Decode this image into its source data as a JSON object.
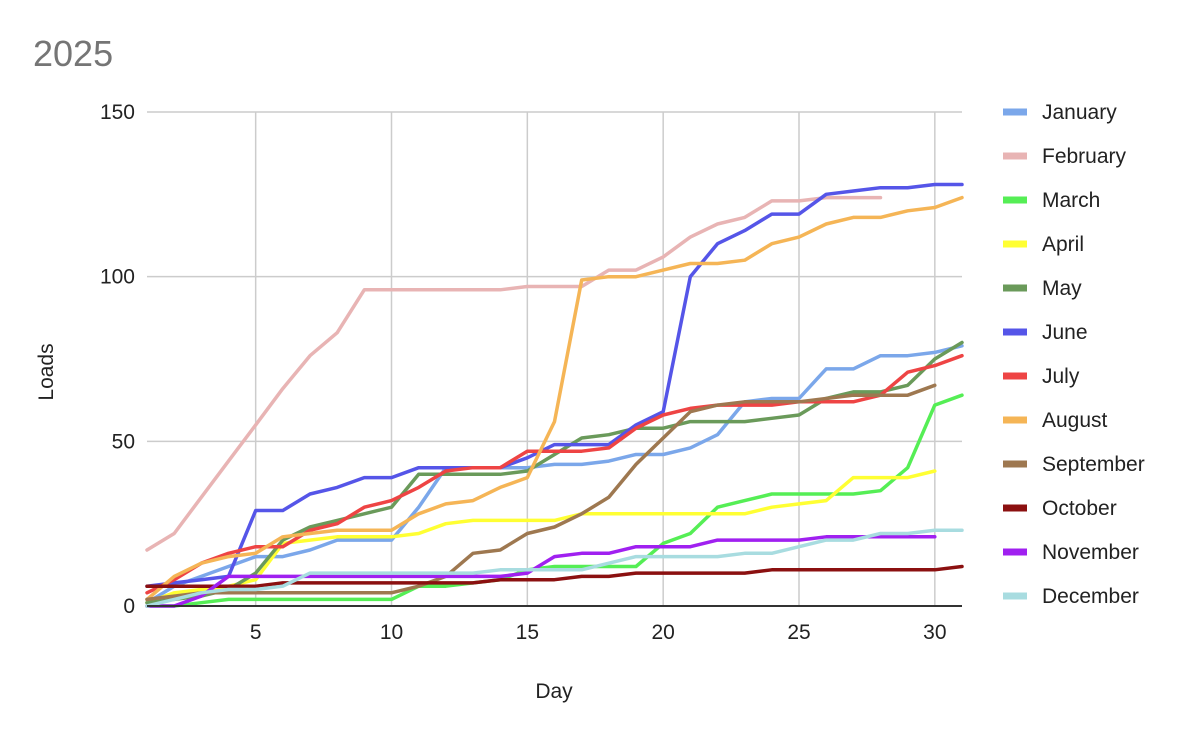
{
  "chart_data": {
    "type": "line",
    "title": "2025",
    "xlabel": "Day",
    "ylabel": "Loads",
    "xlim": [
      1,
      31
    ],
    "ylim": [
      0,
      150
    ],
    "x_ticks": [
      5,
      10,
      15,
      20,
      25,
      30
    ],
    "y_ticks": [
      0,
      50,
      100,
      150
    ],
    "grid": true,
    "legend_position": "right",
    "series": [
      {
        "name": "January",
        "color": "#7ba7ea",
        "x": [
          1,
          2,
          3,
          4,
          5,
          6,
          7,
          8,
          9,
          10,
          11,
          12,
          13,
          14,
          15,
          16,
          17,
          18,
          19,
          20,
          21,
          22,
          23,
          24,
          25,
          26,
          27,
          28,
          29,
          30,
          31
        ],
        "values": [
          1,
          6,
          9,
          12,
          15,
          15,
          17,
          20,
          20,
          20,
          30,
          42,
          42,
          42,
          42,
          43,
          43,
          44,
          46,
          46,
          48,
          52,
          62,
          63,
          63,
          72,
          72,
          76,
          76,
          77,
          79
        ]
      },
      {
        "name": "February",
        "color": "#e8b4b4",
        "x": [
          1,
          2,
          3,
          4,
          5,
          6,
          7,
          8,
          9,
          10,
          11,
          12,
          13,
          14,
          15,
          16,
          17,
          18,
          19,
          20,
          21,
          22,
          23,
          24,
          25,
          26,
          27,
          28
        ],
        "values": [
          17,
          22,
          33,
          44,
          55,
          66,
          76,
          83,
          96,
          96,
          96,
          96,
          96,
          96,
          97,
          97,
          97,
          102,
          102,
          106,
          112,
          116,
          118,
          123,
          123,
          124,
          124,
          124
        ]
      },
      {
        "name": "March",
        "color": "#55ee55",
        "x": [
          1,
          2,
          3,
          4,
          5,
          6,
          7,
          8,
          9,
          10,
          11,
          12,
          13,
          14,
          15,
          16,
          17,
          18,
          19,
          20,
          21,
          22,
          23,
          24,
          25,
          26,
          27,
          28,
          29,
          30,
          31
        ],
        "values": [
          0,
          0,
          1,
          2,
          2,
          2,
          2,
          2,
          2,
          2,
          6,
          6,
          7,
          8,
          11,
          12,
          12,
          12,
          12,
          19,
          22,
          30,
          32,
          34,
          34,
          34,
          34,
          35,
          42,
          61,
          64
        ]
      },
      {
        "name": "April",
        "color": "#ffff33",
        "x": [
          1,
          2,
          3,
          4,
          5,
          6,
          7,
          8,
          9,
          10,
          11,
          12,
          13,
          14,
          15,
          16,
          17,
          18,
          19,
          20,
          21,
          22,
          23,
          24,
          25,
          26,
          27,
          28,
          29,
          30
        ],
        "values": [
          1,
          4,
          5,
          6,
          8,
          19,
          20,
          21,
          21,
          21,
          22,
          25,
          26,
          26,
          26,
          26,
          28,
          28,
          28,
          28,
          28,
          28,
          28,
          30,
          31,
          32,
          39,
          39,
          39,
          41
        ]
      },
      {
        "name": "May",
        "color": "#6a9a5a",
        "x": [
          1,
          2,
          3,
          4,
          5,
          6,
          7,
          8,
          9,
          10,
          11,
          12,
          13,
          14,
          15,
          16,
          17,
          18,
          19,
          20,
          21,
          22,
          23,
          24,
          25,
          26,
          27,
          28,
          29,
          30,
          31
        ],
        "values": [
          1,
          2,
          3,
          5,
          10,
          20,
          24,
          26,
          28,
          30,
          40,
          40,
          40,
          40,
          41,
          46,
          51,
          52,
          54,
          54,
          56,
          56,
          56,
          57,
          58,
          63,
          65,
          65,
          67,
          75,
          80
        ]
      },
      {
        "name": "June",
        "color": "#5555e8",
        "x": [
          1,
          2,
          3,
          4,
          5,
          6,
          7,
          8,
          9,
          10,
          11,
          12,
          13,
          14,
          15,
          16,
          17,
          18,
          19,
          20,
          21,
          22,
          23,
          24,
          25,
          26,
          27,
          28,
          29,
          30,
          31
        ],
        "values": [
          6,
          7,
          8,
          9,
          29,
          29,
          34,
          36,
          39,
          39,
          42,
          42,
          42,
          42,
          45,
          49,
          49,
          49,
          55,
          59,
          100,
          110,
          114,
          119,
          119,
          125,
          126,
          127,
          127,
          128,
          128
        ]
      },
      {
        "name": "July",
        "color": "#ee4444",
        "x": [
          1,
          2,
          3,
          4,
          5,
          6,
          7,
          8,
          9,
          10,
          11,
          12,
          13,
          14,
          15,
          16,
          17,
          18,
          19,
          20,
          21,
          22,
          23,
          24,
          25,
          26,
          27,
          28,
          29,
          30,
          31
        ],
        "values": [
          4,
          8,
          13,
          16,
          18,
          18,
          23,
          25,
          30,
          32,
          36,
          41,
          42,
          42,
          47,
          47,
          47,
          48,
          54,
          58,
          60,
          61,
          61,
          61,
          62,
          62,
          62,
          64,
          71,
          73,
          76
        ]
      },
      {
        "name": "August",
        "color": "#f5b556",
        "x": [
          1,
          2,
          3,
          4,
          5,
          6,
          7,
          8,
          9,
          10,
          11,
          12,
          13,
          14,
          15,
          16,
          17,
          18,
          19,
          20,
          21,
          22,
          23,
          24,
          25,
          26,
          27,
          28,
          29,
          30,
          31
        ],
        "values": [
          2,
          9,
          13,
          15,
          16,
          21,
          22,
          23,
          23,
          23,
          28,
          31,
          32,
          36,
          39,
          56,
          99,
          100,
          100,
          102,
          104,
          104,
          105,
          110,
          112,
          116,
          118,
          118,
          120,
          121,
          124
        ]
      },
      {
        "name": "September",
        "color": "#9e7850",
        "x": [
          1,
          2,
          3,
          4,
          5,
          6,
          7,
          8,
          9,
          10,
          11,
          12,
          13,
          14,
          15,
          16,
          17,
          18,
          19,
          20,
          21,
          22,
          23,
          24,
          25,
          26,
          27,
          28,
          29,
          30
        ],
        "values": [
          2,
          3,
          4,
          4,
          4,
          4,
          4,
          4,
          4,
          4,
          6,
          9,
          16,
          17,
          22,
          24,
          28,
          33,
          43,
          51,
          59,
          61,
          62,
          62,
          62,
          63,
          64,
          64,
          64,
          67
        ]
      },
      {
        "name": "October",
        "color": "#8b1010",
        "x": [
          1,
          2,
          3,
          4,
          5,
          6,
          7,
          8,
          9,
          10,
          11,
          12,
          13,
          14,
          15,
          16,
          17,
          18,
          19,
          20,
          21,
          22,
          23,
          24,
          25,
          26,
          27,
          28,
          29,
          30,
          31
        ],
        "values": [
          6,
          6,
          6,
          6,
          6,
          7,
          7,
          7,
          7,
          7,
          7,
          7,
          7,
          8,
          8,
          8,
          9,
          9,
          10,
          10,
          10,
          10,
          10,
          11,
          11,
          11,
          11,
          11,
          11,
          11,
          12
        ]
      },
      {
        "name": "November",
        "color": "#a020f0",
        "x": [
          1,
          2,
          3,
          4,
          5,
          6,
          7,
          8,
          9,
          10,
          11,
          12,
          13,
          14,
          15,
          16,
          17,
          18,
          19,
          20,
          21,
          22,
          23,
          24,
          25,
          26,
          27,
          28,
          29,
          30
        ],
        "values": [
          0,
          0,
          3,
          9,
          9,
          9,
          9,
          9,
          9,
          9,
          9,
          9,
          9,
          9,
          10,
          15,
          16,
          16,
          18,
          18,
          18,
          20,
          20,
          20,
          20,
          21,
          21,
          21,
          21,
          21
        ]
      },
      {
        "name": "December",
        "color": "#a8dce0",
        "x": [
          1,
          2,
          3,
          4,
          5,
          6,
          7,
          8,
          9,
          10,
          11,
          12,
          13,
          14,
          15,
          16,
          17,
          18,
          19,
          20,
          21,
          22,
          23,
          24,
          25,
          26,
          27,
          28,
          29,
          30,
          31
        ],
        "values": [
          0,
          2,
          4,
          5,
          5,
          6,
          10,
          10,
          10,
          10,
          10,
          10,
          10,
          11,
          11,
          11,
          11,
          13,
          15,
          15,
          15,
          15,
          16,
          16,
          18,
          20,
          20,
          22,
          22,
          23,
          23
        ]
      }
    ]
  }
}
